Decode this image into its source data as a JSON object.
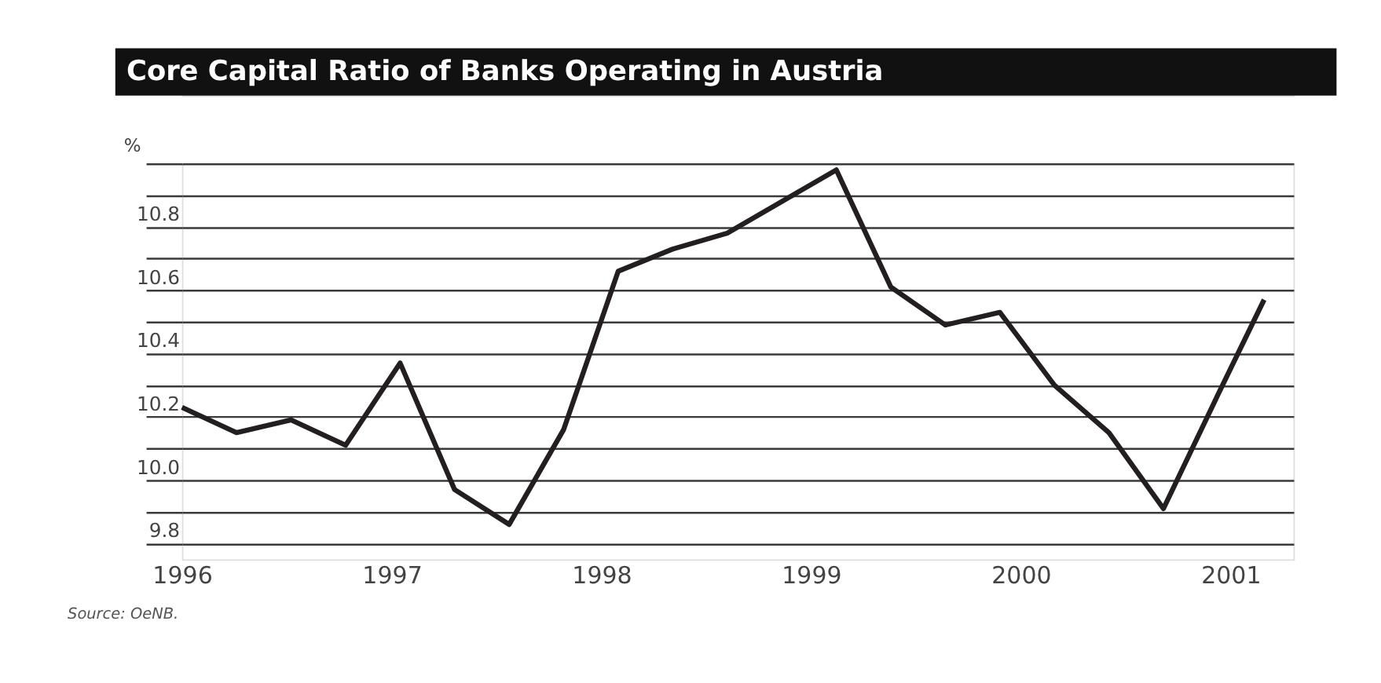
{
  "chart_data": {
    "type": "line",
    "title": "Core Capital Ratio of Banks Operating in Austria",
    "ylabel": "%",
    "x": [
      1996.0,
      1996.26,
      1996.52,
      1996.78,
      1997.04,
      1997.3,
      1997.56,
      1997.82,
      1998.08,
      1998.34,
      1998.6,
      1998.86,
      1999.12,
      1999.38,
      1999.64,
      1999.9,
      2000.16,
      2000.42,
      2000.68,
      2000.94,
      2001.16
    ],
    "series": [
      {
        "color": "#231f20",
        "values": [
          10.23,
          10.15,
          10.19,
          10.11,
          10.37,
          9.97,
          9.86,
          10.16,
          10.66,
          10.73,
          10.78,
          10.88,
          10.98,
          10.61,
          10.49,
          10.53,
          10.3,
          10.15,
          9.91,
          10.27,
          10.57
        ]
      }
    ],
    "xlim": [
      1996,
      2001.3
    ],
    "xticks": [
      1996,
      1997,
      1998,
      1999,
      2000,
      2001
    ],
    "ylim": [
      9.75,
      11.0
    ],
    "yticks": [
      9.8,
      {
        "value": 9.9,
        "label": null
      },
      {
        "value": 10,
        "label": "10.0"
      },
      {
        "value": 10.1,
        "label": null
      },
      10.2,
      {
        "value": 10.3,
        "label": null
      },
      10.4,
      {
        "value": 10.5,
        "label": null
      },
      10.6,
      {
        "value": 10.7,
        "label": null
      },
      10.8,
      {
        "value": 10.9,
        "label": null
      },
      {
        "value": 11.0,
        "label": null
      }
    ],
    "grid": "y",
    "marker": "none",
    "line_style": "solid",
    "annotations": [
      "Source: OeNB."
    ]
  }
}
